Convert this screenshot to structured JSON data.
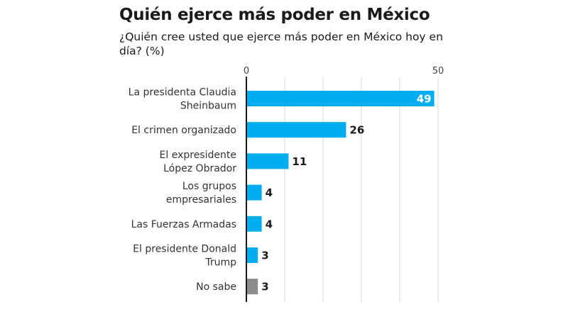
{
  "chart_data": {
    "type": "bar",
    "orientation": "horizontal",
    "title": "Quién ejerce más poder en México",
    "subtitle": "¿Quién cree usted que ejerce más poder en México hoy en día? (%)",
    "categories": [
      [
        "La presidenta Claudia",
        "Sheinbaum"
      ],
      [
        "El crimen organizado"
      ],
      [
        "El expresidente",
        "López Obrador"
      ],
      [
        "Los grupos",
        "empresariales"
      ],
      [
        "Las Fuerzas Armadas"
      ],
      [
        "El presidente Donald",
        "Trump"
      ],
      [
        "No sabe"
      ]
    ],
    "values": [
      49,
      26,
      11,
      4,
      4,
      3,
      3
    ],
    "value_label_inside": [
      true,
      false,
      false,
      false,
      false,
      false,
      false
    ],
    "bar_colors": [
      "#00aeef",
      "#00aeef",
      "#00aeef",
      "#00aeef",
      "#00aeef",
      "#00aeef",
      "#8c8c8c"
    ],
    "xlim": [
      0,
      50
    ],
    "gridlines": [
      0,
      10,
      20,
      30,
      40,
      50
    ],
    "tick_labels": [
      {
        "value": 0,
        "label": "0"
      },
      {
        "value": 50,
        "label": "50"
      }
    ],
    "grid": true,
    "xlabel": "",
    "ylabel": ""
  }
}
